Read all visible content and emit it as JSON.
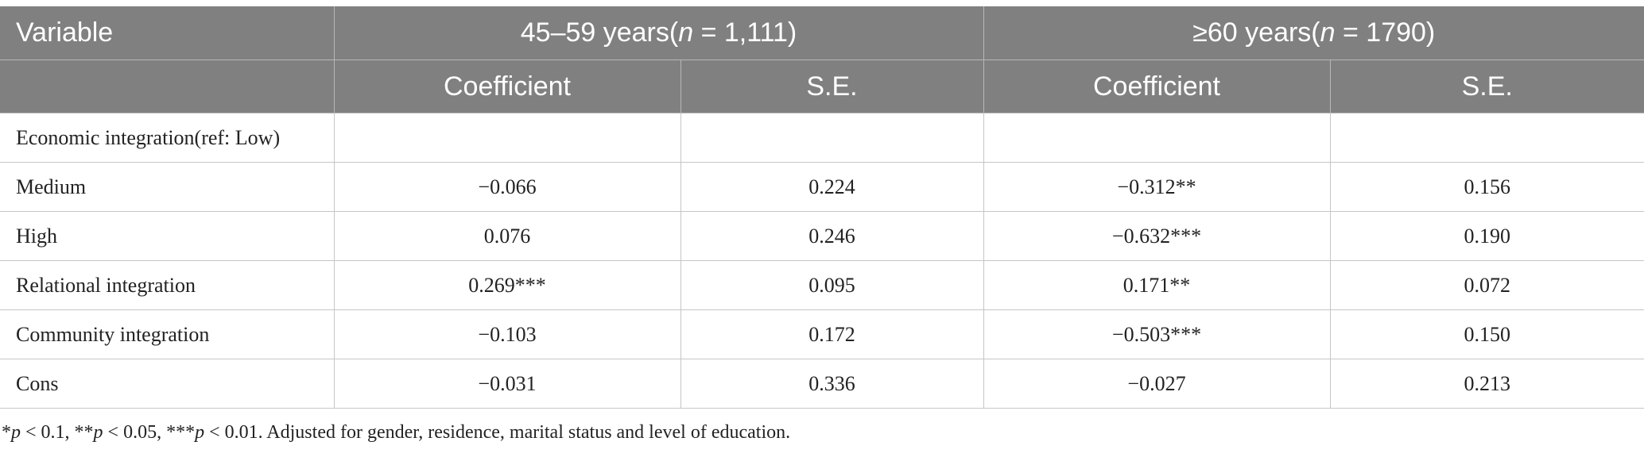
{
  "header": {
    "variable": "Variable",
    "group1": {
      "prefix": "45–59 years(",
      "n_symbol": "n",
      "suffix": " = 1,111)"
    },
    "group2": {
      "prefix": "≥60 years(",
      "n_symbol": "n",
      "suffix": " = 1790)"
    },
    "coefficient": "Coefficient",
    "se": "S.E."
  },
  "rows": [
    {
      "label": "Economic integration(ref: Low)",
      "coef1": "",
      "se1": "",
      "coef2": "",
      "se2": ""
    },
    {
      "label": "Medium",
      "coef1": "−0.066",
      "se1": "0.224",
      "coef2": "−0.312**",
      "se2": "0.156"
    },
    {
      "label": "High",
      "coef1": "0.076",
      "se1": "0.246",
      "coef2": "−0.632***",
      "se2": "0.190"
    },
    {
      "label": "Relational integration",
      "coef1": "0.269***",
      "se1": "0.095",
      "coef2": "0.171**",
      "se2": "0.072"
    },
    {
      "label": "Community integration",
      "coef1": "−0.103",
      "se1": "0.172",
      "coef2": "−0.503***",
      "se2": "0.150"
    },
    {
      "label": "Cons",
      "coef1": "−0.031",
      "se1": "0.336",
      "coef2": "−0.027",
      "se2": "0.213"
    }
  ],
  "footnote": {
    "s1": "*",
    "p1": "p",
    "t1": " < 0.1, **",
    "p2": "p",
    "t2": " < 0.05, ***",
    "p3": "p",
    "t3": " < 0.01. Adjusted for gender, residence, marital status and level of education."
  }
}
